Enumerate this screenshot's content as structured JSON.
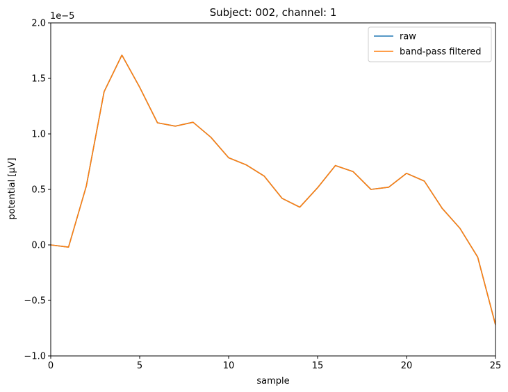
{
  "chart_data": {
    "type": "line",
    "title": "Subject: 002, channel: 1",
    "xlabel": "sample",
    "ylabel": "potential [µV]",
    "offset_label": "1e−5",
    "xlim": [
      0,
      25
    ],
    "ylim": [
      -1.0,
      2.0
    ],
    "x_ticks": [
      0,
      5,
      10,
      15,
      20,
      25
    ],
    "x_tick_labels": [
      "0",
      "5",
      "10",
      "15",
      "20",
      "25"
    ],
    "y_ticks": [
      -1.0,
      -0.5,
      0.0,
      0.5,
      1.0,
      1.5,
      2.0
    ],
    "y_tick_labels": [
      "−1.0",
      "−0.5",
      "0.0",
      "0.5",
      "1.0",
      "1.5",
      "2.0"
    ],
    "grid": false,
    "legend_position": "top-right",
    "x": [
      0,
      1,
      2,
      3,
      4,
      5,
      6,
      7,
      8,
      9,
      10,
      11,
      12,
      13,
      14,
      15,
      16,
      17,
      18,
      19,
      20,
      21,
      22,
      23,
      24,
      25
    ],
    "series": [
      {
        "name": "raw",
        "color": "#1f77b4",
        "values": [
          0.0,
          -0.02,
          0.53,
          1.38,
          1.71,
          1.42,
          1.1,
          1.07,
          1.105,
          0.97,
          0.785,
          0.72,
          0.62,
          0.42,
          0.34,
          0.515,
          0.715,
          0.66,
          0.5,
          0.52,
          0.645,
          0.575,
          0.33,
          0.15,
          -0.11,
          -0.72
        ]
      },
      {
        "name": "band-pass filtered",
        "color": "#ff7f0e",
        "values": [
          0.0,
          -0.02,
          0.53,
          1.38,
          1.71,
          1.42,
          1.1,
          1.07,
          1.105,
          0.97,
          0.785,
          0.72,
          0.62,
          0.42,
          0.34,
          0.515,
          0.715,
          0.66,
          0.5,
          0.52,
          0.645,
          0.575,
          0.33,
          0.15,
          -0.11,
          -0.72
        ]
      }
    ]
  }
}
